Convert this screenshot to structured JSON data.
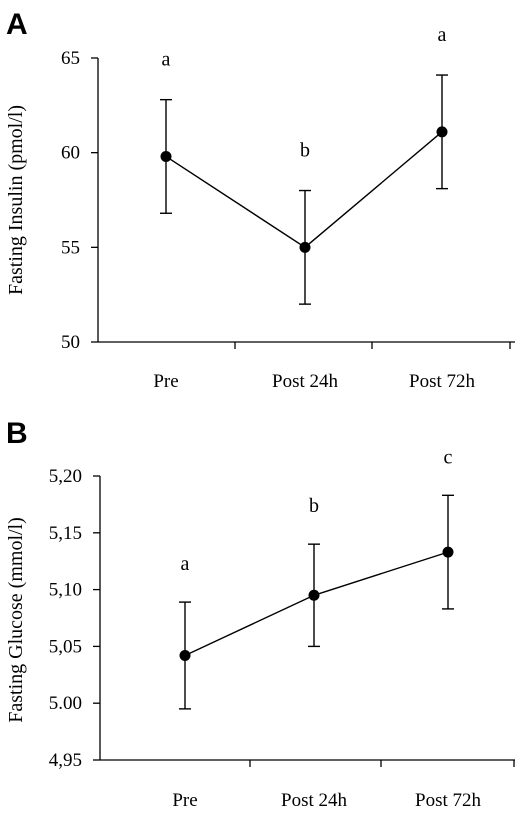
{
  "chart_data": [
    {
      "panel": "A",
      "type": "line",
      "title": "",
      "xlabel": "",
      "ylabel": "Fasting Insulin (pmol/l)",
      "categories": [
        "Pre",
        "Post 24h",
        "Post 72h"
      ],
      "values": [
        59.8,
        55.0,
        61.1
      ],
      "error": [
        3.0,
        3.0,
        3.0
      ],
      "significance": [
        "a",
        "b",
        "a"
      ],
      "ylim": [
        50,
        65
      ],
      "yticks": [
        "50",
        "55",
        "60",
        "65"
      ],
      "grid": false
    },
    {
      "panel": "B",
      "type": "line",
      "title": "",
      "xlabel": "",
      "ylabel": "Fasting Glucose (mmol/l)",
      "categories": [
        "Pre",
        "Post 24h",
        "Post 72h"
      ],
      "values": [
        5.042,
        5.095,
        5.133
      ],
      "error": [
        0.047,
        0.045,
        0.05
      ],
      "significance": [
        "a",
        "b",
        "c"
      ],
      "ylim": [
        4.95,
        5.2
      ],
      "yticks": [
        "4,95",
        "5.00",
        "5,05",
        "5,10",
        "5,15",
        "5,20"
      ],
      "grid": false
    }
  ]
}
